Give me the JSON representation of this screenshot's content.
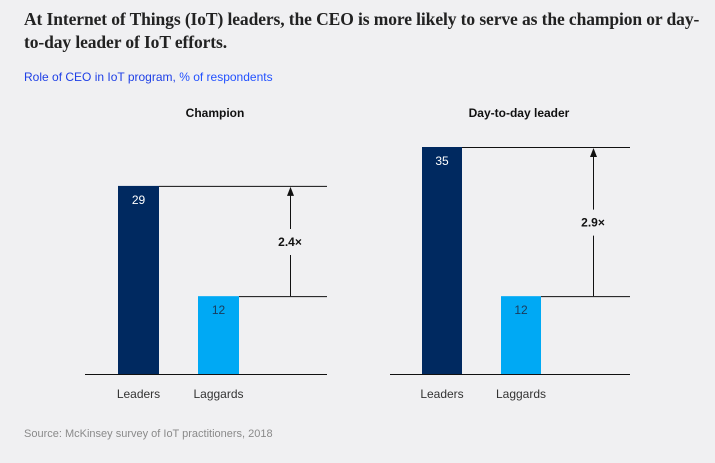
{
  "headline": "At Internet of Things (IoT) leaders, the CEO is more likely to serve as the champion or day-to-day leader of IoT efforts.",
  "subtitle": {
    "metric": "Role of CEO in IoT program,",
    "unit": "% of respondents"
  },
  "source": "Source: McKinsey survey of IoT practitioners, 2018",
  "colors": {
    "leaders": "#002960",
    "laggards": "#00a9f4",
    "leaders_label": "#ffffff",
    "laggards_label": "#1a3a5a"
  },
  "chart_data": [
    {
      "type": "bar",
      "title": "Champion",
      "categories": [
        "Leaders",
        "Laggards"
      ],
      "values": [
        29,
        12
      ],
      "annotation": "2.4×",
      "ylim": [
        0,
        35
      ],
      "grid": false,
      "xlabel": "",
      "ylabel": "% of respondents"
    },
    {
      "type": "bar",
      "title": "Day-to-day leader",
      "categories": [
        "Leaders",
        "Laggards"
      ],
      "values": [
        35,
        12
      ],
      "annotation": "2.9×",
      "ylim": [
        0,
        35
      ],
      "grid": false,
      "xlabel": "",
      "ylabel": "% of respondents"
    }
  ]
}
